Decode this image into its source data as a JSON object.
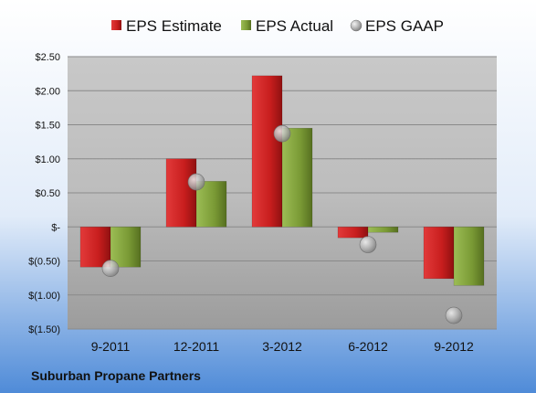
{
  "chart_data": {
    "type": "bar",
    "title": "",
    "categories": [
      "9-2011",
      "12-2011",
      "3-2012",
      "6-2012",
      "9-2012"
    ],
    "series": [
      {
        "name": "EPS Estimate",
        "kind": "bar",
        "color": "#c81e1e",
        "values": [
          -0.59,
          1.0,
          2.22,
          -0.16,
          -0.76
        ]
      },
      {
        "name": "EPS Actual",
        "kind": "bar",
        "color": "#7a9a35",
        "values": [
          -0.59,
          0.67,
          1.45,
          -0.08,
          -0.86
        ]
      },
      {
        "name": "EPS GAAP",
        "kind": "marker",
        "color": "#a8a8a8",
        "values": [
          -0.61,
          0.66,
          1.37,
          -0.26,
          -1.3
        ]
      }
    ],
    "ylim": [
      -1.5,
      2.5
    ],
    "yticks": [
      2.5,
      2.0,
      1.5,
      1.0,
      0.5,
      0,
      -0.5,
      -1.0,
      -1.5
    ],
    "ytick_labels": [
      "$2.50",
      "$2.00",
      "$1.50",
      "$1.00",
      "$0.50",
      "$-",
      "$(0.50)",
      "$(1.00)",
      "$(1.50)"
    ],
    "grid": true,
    "legend_position": "top"
  },
  "footer": {
    "company": "Suburban Propane Partners"
  }
}
